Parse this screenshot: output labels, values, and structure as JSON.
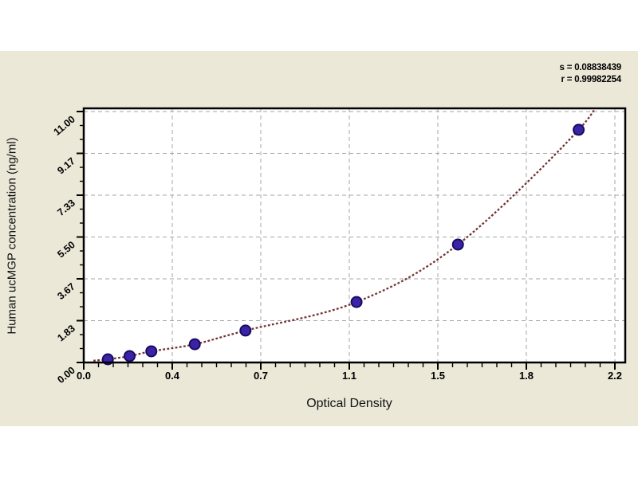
{
  "annotation": {
    "s_line": "s = 0.08838439",
    "r_line": "r = 0.99982254"
  },
  "chart_data": {
    "type": "scatter",
    "title": "",
    "xlabel": "Optical Density",
    "ylabel": "Human ucMGP concentration (ng/ml)",
    "xlim": [
      0,
      2.2
    ],
    "ylim": [
      0,
      11
    ],
    "grid": "dashed",
    "legend": "none",
    "x_ticks": {
      "values": [
        0,
        0.3667,
        0.7333,
        1.1,
        1.4667,
        1.8333,
        2.2
      ],
      "labels": [
        "0.0",
        "0.4",
        "0.7",
        "1.1",
        "1.5",
        "1.8",
        "2.2"
      ],
      "minor_divisions": 6
    },
    "y_ticks": {
      "values": [
        0,
        1.8333,
        3.6667,
        5.5,
        7.3333,
        9.1667,
        11
      ],
      "labels": [
        "0.00",
        "1.83",
        "3.67",
        "5.50",
        "7.33",
        "9.17",
        "11.00"
      ],
      "minor_divisions": 3
    },
    "series": [
      {
        "name": "standards",
        "marker": "circle",
        "marker_color": "#3b23a8",
        "marker_edge_color": "#1a0b5e",
        "points": [
          [
            0.1,
            0.14
          ],
          [
            0.19,
            0.28
          ],
          [
            0.28,
            0.49
          ],
          [
            0.46,
            0.8
          ],
          [
            0.67,
            1.4
          ],
          [
            1.13,
            2.65
          ],
          [
            1.55,
            5.17
          ],
          [
            2.05,
            10.2
          ]
        ]
      }
    ],
    "fit_curve": {
      "name": "fitted-standard-curve",
      "color": "#743434",
      "style": "dotted",
      "points": [
        [
          0.04,
          0.08
        ],
        [
          0.1,
          0.14
        ],
        [
          0.19,
          0.28
        ],
        [
          0.28,
          0.49
        ],
        [
          0.46,
          0.8
        ],
        [
          0.67,
          1.4
        ],
        [
          1.13,
          2.65
        ],
        [
          1.55,
          5.17
        ],
        [
          2.05,
          10.2
        ],
        [
          2.16,
          12.2
        ]
      ]
    },
    "colors": {
      "panel_bg": "#ebe8d8",
      "plot_bg": "#ffffff",
      "frame": "#000000",
      "grid": "#a6a6a6",
      "tick_text": "#000000"
    }
  }
}
